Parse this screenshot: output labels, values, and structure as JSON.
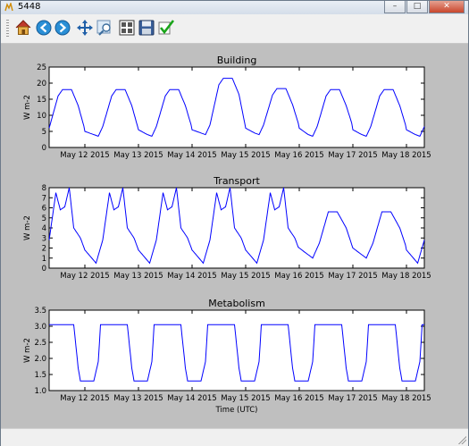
{
  "window": {
    "title": "5448",
    "min_label": "–",
    "max_label": "□",
    "close_label": "✕"
  },
  "toolbar": {
    "buttons": [
      {
        "name": "home-button",
        "icon": "home-icon"
      },
      {
        "name": "back-button",
        "icon": "arrow-left-icon"
      },
      {
        "name": "forward-button",
        "icon": "arrow-right-icon"
      },
      {
        "name": "pan-button",
        "icon": "move-icon"
      },
      {
        "name": "zoom-button",
        "icon": "zoom-rect-icon"
      },
      {
        "name": "configure-subplots-button",
        "icon": "subplots-icon"
      },
      {
        "name": "save-button",
        "icon": "floppy-disk-icon"
      },
      {
        "name": "edit-curves-button",
        "icon": "checkmark-icon"
      }
    ]
  },
  "chart_data": [
    {
      "type": "line",
      "title": "Building",
      "ylabel": "W m-2",
      "xlabel": "",
      "ylim": [
        0,
        25
      ],
      "yticks": [
        0,
        5,
        10,
        15,
        20,
        25
      ],
      "xticks": [
        "May 12 2015",
        "May 13 2015",
        "May 14 2015",
        "May 15 2015",
        "May 16 2015",
        "May 17 2015",
        "May 18 2015"
      ],
      "x_start": "May 11 2015 08:00",
      "x_end": "May 18 2015 08:00",
      "daily_peaks": [
        18,
        18,
        18,
        21.5,
        18.3,
        18,
        18
      ],
      "daily_troughs": [
        3,
        3.5,
        3.5,
        4,
        4,
        3.5,
        3.5
      ],
      "color": "#0000ff"
    },
    {
      "type": "line",
      "title": "Transport",
      "ylabel": "W m-2",
      "xlabel": "",
      "ylim": [
        0,
        8
      ],
      "yticks": [
        0,
        1,
        2,
        3,
        4,
        5,
        6,
        7,
        8
      ],
      "xticks": [
        "May 12 2015",
        "May 13 2015",
        "May 14 2015",
        "May 15 2015",
        "May 16 2015",
        "May 17 2015",
        "May 18 2015"
      ],
      "x_start": "May 11 2015 08:00",
      "x_end": "May 18 2015 08:00",
      "weekday_first_peak": 7.5,
      "weekday_mid_dip": 5.8,
      "weekday_second_peak": 8,
      "weekend_peak": 5.6,
      "weekday_trough": 0.5,
      "weekend_trough": 1,
      "color": "#0000ff"
    },
    {
      "type": "line",
      "title": "Metabolism",
      "ylabel": "W m-2",
      "xlabel": "Time (UTC)",
      "ylim": [
        1.0,
        3.5
      ],
      "yticks": [
        "1.0",
        "1.5",
        "2.0",
        "2.5",
        "3.0",
        "3.5"
      ],
      "xticks": [
        "May 12 2015",
        "May 13 2015",
        "May 14 2015",
        "May 15 2015",
        "May 16 2015",
        "May 17 2015",
        "May 18 2015"
      ],
      "x_start": "May 11 2015 08:00",
      "x_end": "May 18 2015 08:00",
      "day_value": 3.05,
      "night_value": 1.3,
      "color": "#0000ff"
    }
  ]
}
